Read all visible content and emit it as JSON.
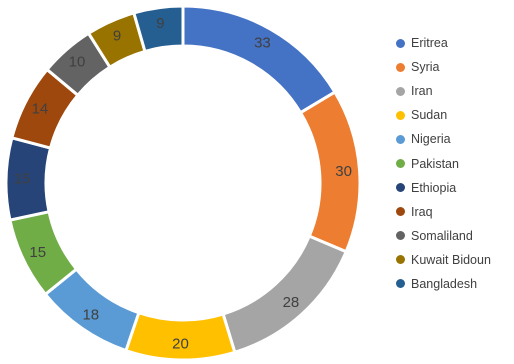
{
  "chart_data": {
    "type": "pie",
    "style": "doughnut",
    "title": "",
    "legend_position": "right",
    "categories": [
      "Eritrea",
      "Syria",
      "Iran",
      "Sudan",
      "Nigeria",
      "Pakistan",
      "Ethiopia",
      "Iraq",
      "Somaliland",
      "Kuwait Bidoun",
      "Bangladesh"
    ],
    "values": [
      33,
      30,
      28,
      20,
      18,
      15,
      15,
      14,
      10,
      9,
      9
    ],
    "colors": [
      "#4472C4",
      "#ED7D31",
      "#A5A5A5",
      "#FFC000",
      "#5B9BD5",
      "#70AD47",
      "#264478",
      "#9E480E",
      "#636363",
      "#997300",
      "#255E91"
    ]
  }
}
